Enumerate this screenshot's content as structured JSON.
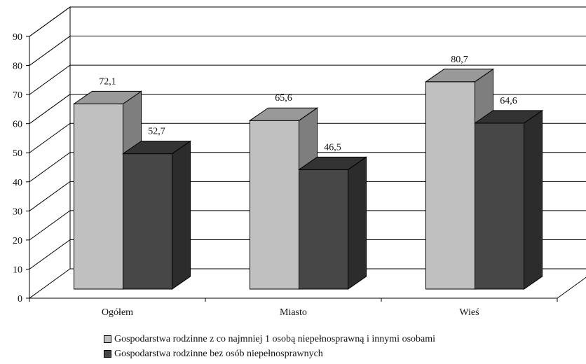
{
  "chart_data": {
    "type": "bar",
    "categories": [
      "Ogółem",
      "Miasto",
      "Wieś"
    ],
    "series": [
      {
        "name": "Gospodarstwa rodzinne z co najmniej 1 osobą niepełnosprawną i innymi osobami",
        "values": [
          72.1,
          65.6,
          80.7
        ],
        "labels": [
          "72,1",
          "65,6",
          "80,7"
        ]
      },
      {
        "name": "Gospodarstwa rodzinne bez osób niepełnosprawnych",
        "values": [
          52.7,
          46.5,
          64.6
        ],
        "labels": [
          "52,7",
          "46,5",
          "64,6"
        ]
      }
    ],
    "ylim": [
      0,
      90
    ],
    "yticks": [
      0,
      10,
      20,
      30,
      40,
      50,
      60,
      70,
      80,
      90
    ],
    "grid": true,
    "legend_position": "bottom",
    "style": "3d-clustered",
    "colors": {
      "series1_front": "#c0c0c0",
      "series1_side": "#7e7e7e",
      "series1_top": "#999999",
      "series2_front": "#474747",
      "series2_side": "#2c2c2c",
      "series2_top": "#333333"
    }
  }
}
